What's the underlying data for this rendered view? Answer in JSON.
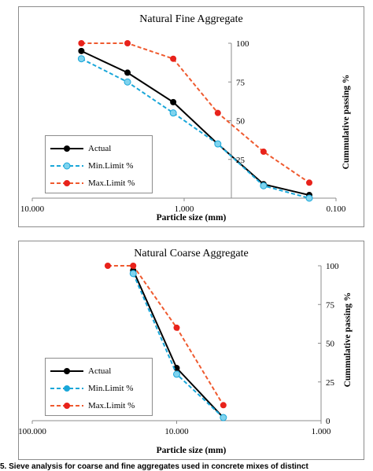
{
  "chart_data": [
    {
      "type": "line",
      "title": "Natural Fine Aggregate",
      "xlabel": "Particle size (mm)",
      "ylabel": "Cummulative passing %",
      "x_scale": "log",
      "x_reversed": true,
      "xlim": [
        10,
        0.1
      ],
      "ylim": [
        0,
        100
      ],
      "x_ticks": [
        10,
        1,
        0.1
      ],
      "x_tick_labels": [
        "10.000",
        "1.000",
        "0.100"
      ],
      "y_ticks": [
        0,
        25,
        50,
        75,
        100
      ],
      "y_tick_labels": [
        "",
        "25",
        "50",
        "75",
        "100"
      ],
      "y_axis_position": "at x = 0.6",
      "grid": false,
      "legend_position": "bottom-left",
      "series": [
        {
          "name": "Actual",
          "color": "#000000",
          "dash": "solid",
          "marker": "circle",
          "x": [
            4.75,
            2.36,
            1.18,
            0.6,
            0.3,
            0.15
          ],
          "y": [
            95,
            81,
            62,
            35,
            9,
            2
          ]
        },
        {
          "name": "Min.Limit %",
          "color": "#1aa7d9",
          "dash": "dashed",
          "marker": "circle",
          "x": [
            4.75,
            2.36,
            1.18,
            0.6,
            0.3,
            0.15
          ],
          "y": [
            90,
            75,
            55,
            35,
            8,
            0
          ]
        },
        {
          "name": "Max.Limit %",
          "color": "#ef5a2f",
          "dash": "dashed",
          "marker": "circle",
          "x": [
            4.75,
            2.36,
            1.18,
            0.6,
            0.3,
            0.15
          ],
          "y": [
            100,
            100,
            90,
            55,
            30,
            10
          ]
        }
      ]
    },
    {
      "type": "line",
      "title": "Natural Coarse Aggregate",
      "xlabel": "Particle size (mm)",
      "ylabel": "Cummulative passing %",
      "x_scale": "log",
      "x_reversed": true,
      "xlim": [
        100,
        1
      ],
      "ylim": [
        0,
        100
      ],
      "x_ticks": [
        100,
        10,
        1
      ],
      "x_tick_labels": [
        "100.000",
        "10.000",
        "1.000"
      ],
      "y_ticks": [
        0,
        25,
        50,
        75,
        100
      ],
      "y_tick_labels": [
        "0",
        "25",
        "50",
        "75",
        "100"
      ],
      "y_axis_position": "right",
      "grid": false,
      "legend_position": "bottom-left",
      "series": [
        {
          "name": "Actual",
          "color": "#000000",
          "dash": "solid",
          "marker": "circle",
          "x": [
            20,
            10,
            4.75
          ],
          "y": [
            97,
            34,
            2
          ]
        },
        {
          "name": "Min.Limit %",
          "color": "#1aa7d9",
          "dash": "dashed",
          "marker": "circle",
          "x": [
            20,
            10,
            4.75
          ],
          "y": [
            95,
            30,
            2
          ]
        },
        {
          "name": "Max.Limit %",
          "color": "#ef5a2f",
          "dash": "dashed",
          "marker": "circle",
          "x": [
            30,
            20,
            10,
            4.75
          ],
          "y": [
            100,
            100,
            60,
            10
          ]
        }
      ]
    }
  ],
  "caption": "5. Sieve analysis for coarse and fine aggregates used in concrete mixes of distinct"
}
